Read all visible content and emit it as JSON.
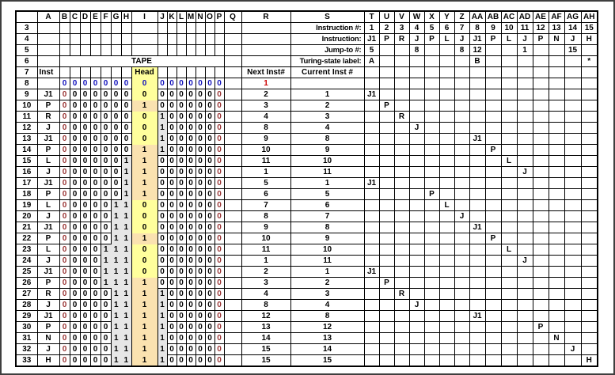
{
  "colors": {
    "grid_line": "#000000",
    "frame_border": "#3f3f3f",
    "cell_bg": "#ffffff",
    "text": "#000000",
    "head_zero_bg": "#ffff9c",
    "head_one_bg": "#fae2b0",
    "one_cell_bg": "#e6e6e6",
    "input_row_text": "#1111bb",
    "tape_edge_text": "#993333",
    "start_next_text": "#cc0000"
  },
  "column_headers": [
    "A",
    "B",
    "C",
    "D",
    "E",
    "F",
    "G",
    "H",
    "I",
    "J",
    "K",
    "L",
    "M",
    "N",
    "O",
    "P",
    "Q",
    "R",
    "S",
    "T",
    "U",
    "V",
    "W",
    "X",
    "Y",
    "Z",
    "AA",
    "AB",
    "AC",
    "AD",
    "AE",
    "AF",
    "AG",
    "AH"
  ],
  "labels": {
    "tape": "TAPE",
    "head": "Head",
    "inst": "Inst",
    "next_inst": "Next Inst#",
    "current_inst": "Current Inst #",
    "instruction_num": "Instruction #:",
    "instruction": "Instruction:",
    "jump_to": "Jump-to #:",
    "state_label": "Turing-state label:"
  },
  "program": {
    "numbers": [
      "1",
      "2",
      "3",
      "4",
      "5",
      "6",
      "7",
      "8",
      "9",
      "10",
      "11",
      "12",
      "13",
      "14",
      "15"
    ],
    "instructions": [
      "J1",
      "P",
      "R",
      "J",
      "P",
      "L",
      "J",
      "J1",
      "P",
      "L",
      "J",
      "P",
      "N",
      "J",
      "H"
    ],
    "jump_to": [
      "5",
      "",
      "",
      "8",
      "",
      "",
      "8",
      "12",
      "",
      "",
      "1",
      "",
      "",
      "15",
      ""
    ],
    "state_labels": [
      "A",
      "",
      "",
      "",
      "",
      "",
      "",
      "B",
      "",
      "",
      "",
      "",
      "",
      "",
      "*"
    ]
  },
  "trace": {
    "row_numbers_top": [
      "3",
      "4",
      "5",
      "6",
      "7"
    ],
    "rows": [
      {
        "num": "8",
        "inst": "",
        "left": "0000000",
        "head": "0",
        "right": "0000000",
        "next": "1",
        "cur": ""
      },
      {
        "num": "9",
        "inst": "J1",
        "left": "0000000",
        "head": "0",
        "right": "0000000",
        "next": "2",
        "cur": "1"
      },
      {
        "num": "10",
        "inst": "P",
        "left": "0000000",
        "head": "1",
        "right": "0000000",
        "next": "3",
        "cur": "2"
      },
      {
        "num": "11",
        "inst": "R",
        "left": "0000000",
        "head": "0",
        "right": "1000000",
        "next": "4",
        "cur": "3"
      },
      {
        "num": "12",
        "inst": "J",
        "left": "0000000",
        "head": "0",
        "right": "1000000",
        "next": "8",
        "cur": "4"
      },
      {
        "num": "13",
        "inst": "J1",
        "left": "0000000",
        "head": "0",
        "right": "1000000",
        "next": "9",
        "cur": "8"
      },
      {
        "num": "14",
        "inst": "P",
        "left": "0000000",
        "head": "1",
        "right": "1000000",
        "next": "10",
        "cur": "9"
      },
      {
        "num": "15",
        "inst": "L",
        "left": "0000001",
        "head": "1",
        "right": "0000000",
        "next": "11",
        "cur": "10"
      },
      {
        "num": "16",
        "inst": "J",
        "left": "0000001",
        "head": "1",
        "right": "0000000",
        "next": "1",
        "cur": "11"
      },
      {
        "num": "17",
        "inst": "J1",
        "left": "0000001",
        "head": "1",
        "right": "0000000",
        "next": "5",
        "cur": "1"
      },
      {
        "num": "18",
        "inst": "P",
        "left": "0000001",
        "head": "1",
        "right": "0000000",
        "next": "6",
        "cur": "5"
      },
      {
        "num": "19",
        "inst": "L",
        "left": "0000011",
        "head": "0",
        "right": "0000000",
        "next": "7",
        "cur": "6"
      },
      {
        "num": "20",
        "inst": "J",
        "left": "0000011",
        "head": "0",
        "right": "0000000",
        "next": "8",
        "cur": "7"
      },
      {
        "num": "21",
        "inst": "J1",
        "left": "0000011",
        "head": "0",
        "right": "0000000",
        "next": "9",
        "cur": "8"
      },
      {
        "num": "22",
        "inst": "P",
        "left": "0000011",
        "head": "1",
        "right": "0000000",
        "next": "10",
        "cur": "9"
      },
      {
        "num": "23",
        "inst": "L",
        "left": "0000111",
        "head": "0",
        "right": "0000000",
        "next": "11",
        "cur": "10"
      },
      {
        "num": "24",
        "inst": "J",
        "left": "0000111",
        "head": "0",
        "right": "0000000",
        "next": "1",
        "cur": "11"
      },
      {
        "num": "25",
        "inst": "J1",
        "left": "0000111",
        "head": "0",
        "right": "0000000",
        "next": "2",
        "cur": "1"
      },
      {
        "num": "26",
        "inst": "P",
        "left": "0000111",
        "head": "1",
        "right": "0000000",
        "next": "3",
        "cur": "2"
      },
      {
        "num": "27",
        "inst": "R",
        "left": "0000011",
        "head": "1",
        "right": "1000000",
        "next": "4",
        "cur": "3"
      },
      {
        "num": "28",
        "inst": "J",
        "left": "0000011",
        "head": "1",
        "right": "1000000",
        "next": "8",
        "cur": "4"
      },
      {
        "num": "29",
        "inst": "J1",
        "left": "0000011",
        "head": "1",
        "right": "1000000",
        "next": "12",
        "cur": "8"
      },
      {
        "num": "30",
        "inst": "P",
        "left": "0000011",
        "head": "1",
        "right": "1000000",
        "next": "13",
        "cur": "12"
      },
      {
        "num": "31",
        "inst": "N",
        "left": "0000011",
        "head": "1",
        "right": "1000000",
        "next": "14",
        "cur": "13"
      },
      {
        "num": "32",
        "inst": "J",
        "left": "0000011",
        "head": "1",
        "right": "1000000",
        "next": "15",
        "cur": "14"
      },
      {
        "num": "33",
        "inst": "H",
        "left": "0000011",
        "head": "1",
        "right": "1000000",
        "next": "15",
        "cur": "15"
      }
    ]
  }
}
